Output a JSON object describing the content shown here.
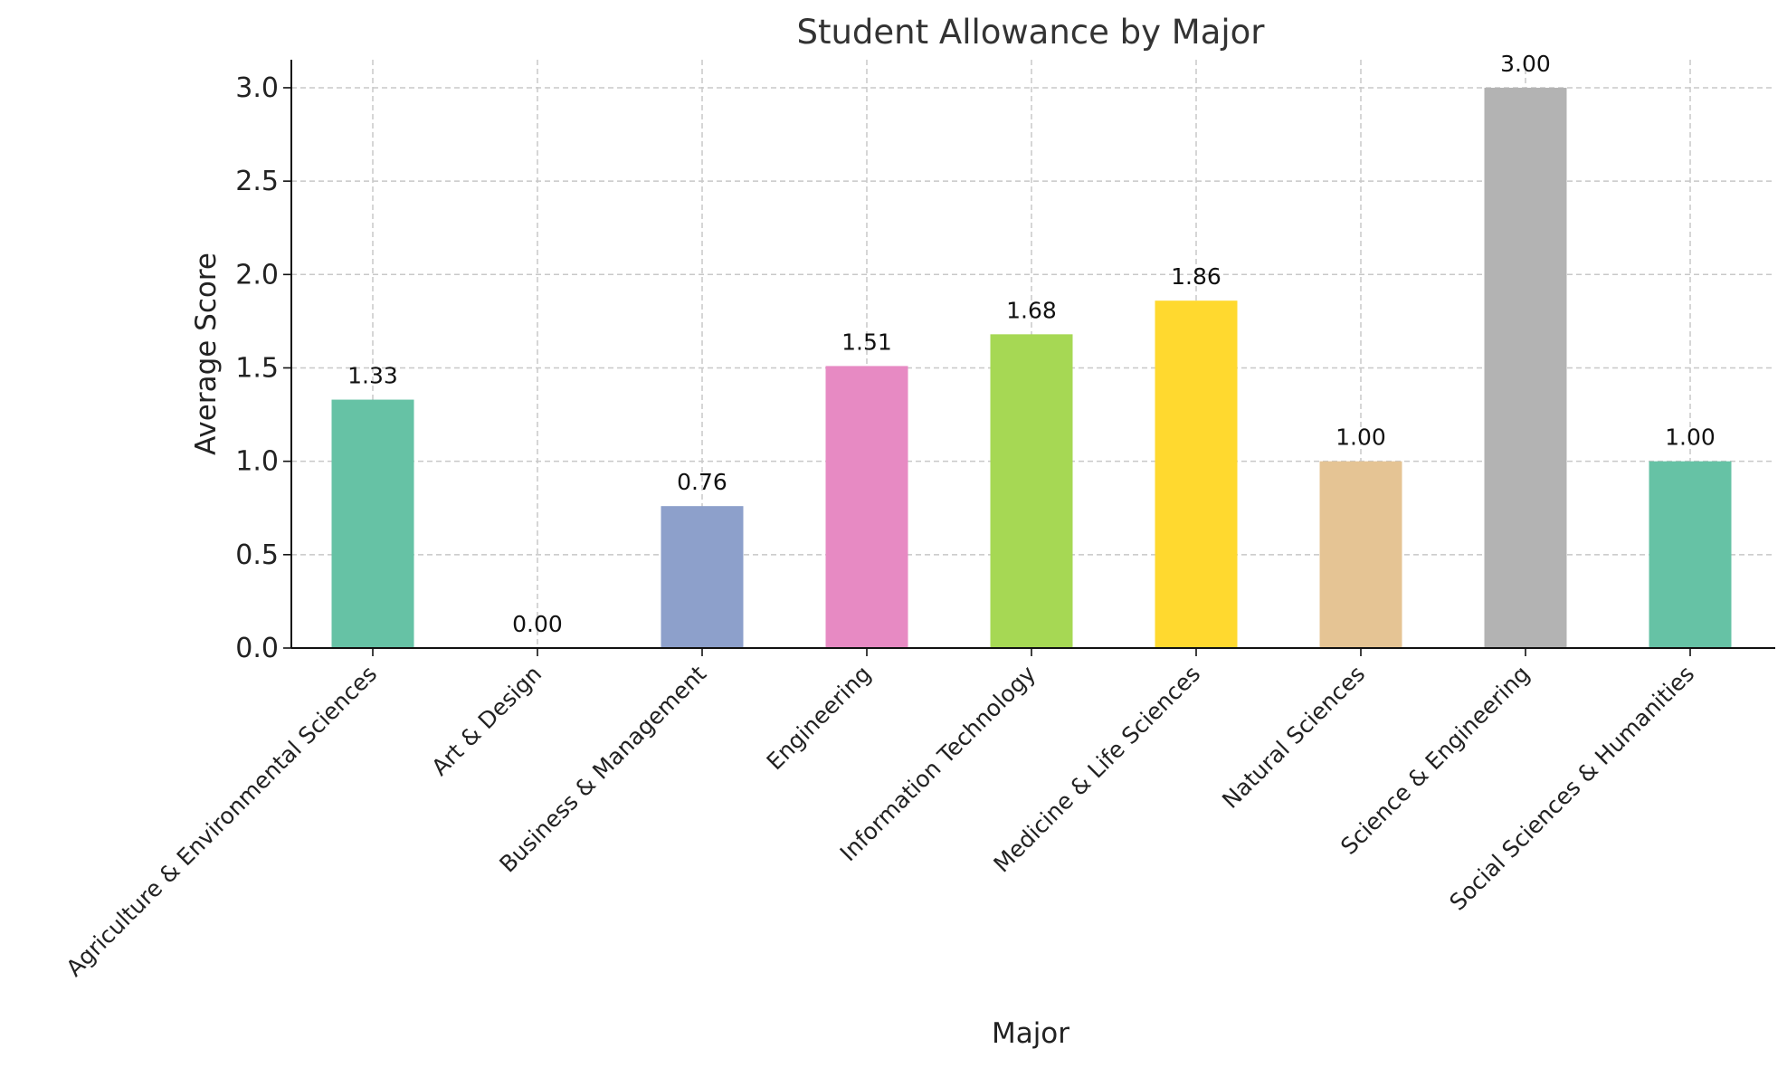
{
  "chart_data": {
    "type": "bar",
    "title": "Student Allowance by Major",
    "xlabel": "Major",
    "ylabel": "Average Score",
    "categories": [
      "Agriculture & Environmental Sciences",
      "Art & Design",
      "Business & Management",
      "Engineering",
      "Information Technology",
      "Medicine & Life Sciences",
      "Natural Sciences",
      "Science & Engineering",
      "Social Sciences & Humanities"
    ],
    "values": [
      1.33,
      0.0,
      0.76,
      1.51,
      1.68,
      1.86,
      1.0,
      3.0,
      1.0
    ],
    "data_labels": [
      "1.33",
      "0.00",
      "0.76",
      "1.51",
      "1.68",
      "1.86",
      "1.00",
      "3.00",
      "1.00"
    ],
    "colors": [
      "#66c2a5",
      "#fc8d62",
      "#8da0cb",
      "#e78ac3",
      "#a6d854",
      "#ffd92f",
      "#e5c494",
      "#b3b3b3",
      "#66c2a5"
    ],
    "ylim": [
      0,
      3.15
    ],
    "yticks": [
      0.0,
      0.5,
      1.0,
      1.5,
      2.0,
      2.5,
      3.0
    ],
    "ytick_labels": [
      "0.0",
      "0.5",
      "1.0",
      "1.5",
      "2.0",
      "2.5",
      "3.0"
    ],
    "grid": true
  }
}
